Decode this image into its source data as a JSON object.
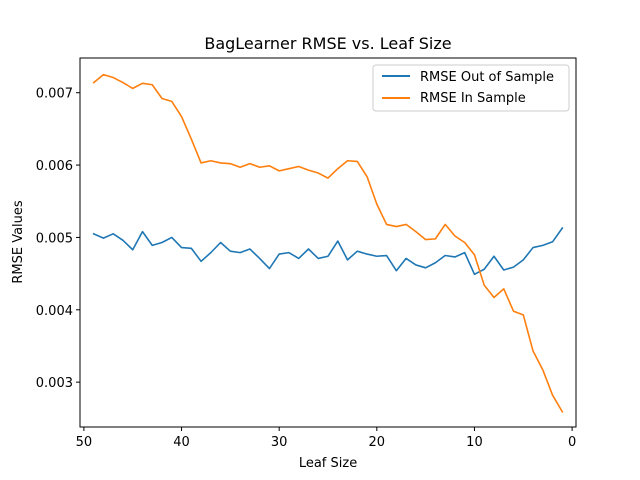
{
  "chart_data": {
    "type": "line",
    "title": "BagLearner RMSE vs. Leaf Size",
    "xlabel": "Leaf Size",
    "ylabel": "RMSE Values",
    "xlim": [
      50.4,
      -0.4
    ],
    "ylim": [
      0.00238,
      0.00748
    ],
    "xticks": [
      50,
      40,
      30,
      20,
      10,
      0
    ],
    "xtick_labels": [
      "50",
      "40",
      "30",
      "20",
      "10",
      "0"
    ],
    "yticks": [
      0.003,
      0.004,
      0.005,
      0.006,
      0.007
    ],
    "ytick_labels": [
      "0.003",
      "0.004",
      "0.005",
      "0.006",
      "0.007"
    ],
    "grid": false,
    "legend_position": "upper right",
    "x": [
      49,
      48,
      47,
      46,
      45,
      44,
      43,
      42,
      41,
      40,
      39,
      38,
      37,
      36,
      35,
      34,
      33,
      32,
      31,
      30,
      29,
      28,
      27,
      26,
      25,
      24,
      23,
      22,
      21,
      20,
      19,
      18,
      17,
      16,
      15,
      14,
      13,
      12,
      11,
      10,
      9,
      8,
      7,
      6,
      5,
      4,
      3,
      2,
      1
    ],
    "series": [
      {
        "name": "RMSE Out of Sample",
        "color": "#1f77b4",
        "values": [
          0.00505,
          0.00499,
          0.00505,
          0.00496,
          0.00483,
          0.00508,
          0.00489,
          0.00493,
          0.005,
          0.00486,
          0.00485,
          0.00467,
          0.00479,
          0.00493,
          0.00481,
          0.00479,
          0.00484,
          0.00471,
          0.00457,
          0.00477,
          0.00479,
          0.00471,
          0.00484,
          0.00471,
          0.00474,
          0.00495,
          0.00469,
          0.00481,
          0.00477,
          0.00474,
          0.00475,
          0.00454,
          0.00471,
          0.00462,
          0.00458,
          0.00465,
          0.00475,
          0.00473,
          0.00479,
          0.00449,
          0.00456,
          0.00474,
          0.00455,
          0.00459,
          0.00469,
          0.00486,
          0.00489,
          0.00494,
          0.00513
        ]
      },
      {
        "name": "RMSE In Sample",
        "color": "#ff7f0e",
        "values": [
          0.00714,
          0.00725,
          0.00721,
          0.00714,
          0.00706,
          0.00713,
          0.00711,
          0.00692,
          0.00688,
          0.00667,
          0.00636,
          0.00603,
          0.00606,
          0.00603,
          0.00602,
          0.00597,
          0.00602,
          0.00597,
          0.00599,
          0.00592,
          0.00595,
          0.00598,
          0.00593,
          0.00589,
          0.00582,
          0.00595,
          0.00606,
          0.00605,
          0.00584,
          0.00546,
          0.00518,
          0.00515,
          0.00518,
          0.00508,
          0.00497,
          0.00498,
          0.00518,
          0.00502,
          0.00493,
          0.00476,
          0.00434,
          0.00417,
          0.00429,
          0.00398,
          0.00393,
          0.00343,
          0.00317,
          0.00282,
          0.00259
        ]
      }
    ]
  }
}
